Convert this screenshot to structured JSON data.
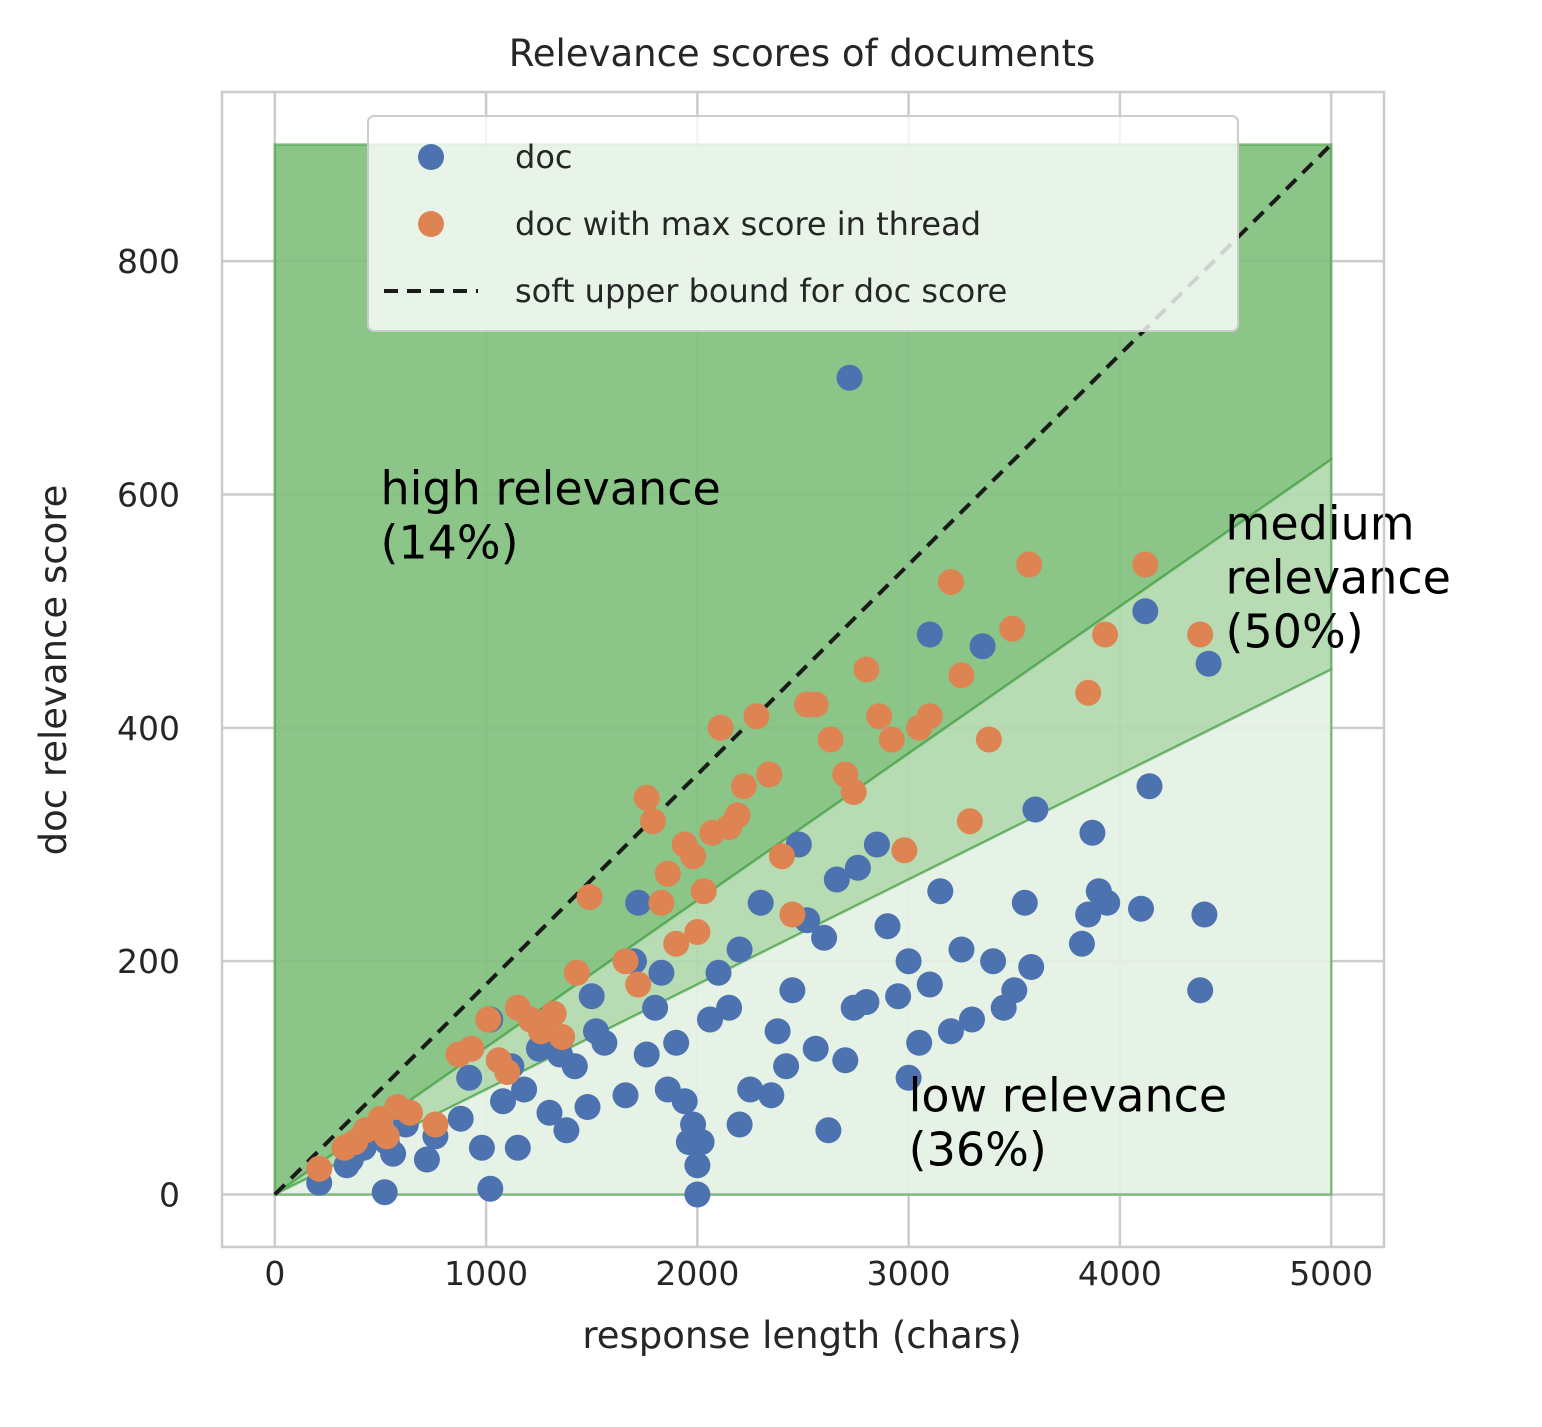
{
  "chart_data": {
    "type": "scatter",
    "title": "Relevance scores of documents",
    "xlabel": "response length (chars)",
    "ylabel": "doc relevance score",
    "xlim": [
      -250,
      5250
    ],
    "ylim": [
      -45,
      945
    ],
    "xticks": [
      0,
      1000,
      2000,
      3000,
      4000,
      5000
    ],
    "yticks": [
      0,
      200,
      400,
      600,
      800
    ],
    "grid": true,
    "legend": {
      "placement": "upper-center",
      "entries": [
        {
          "label": "doc",
          "marker": "circle",
          "color": "#4c72b0"
        },
        {
          "label": "doc with max score in thread",
          "marker": "circle",
          "color": "#dd8452"
        },
        {
          "label": "soft upper bound for doc score",
          "marker": "dashed-line",
          "color": "#1a1a1a"
        }
      ]
    },
    "regions": [
      {
        "label": "high relevance\n(14%)",
        "label_lines": [
          "high relevance",
          "(14%)"
        ],
        "color": "#81c07e",
        "text_anchor": [
          500,
          605
        ],
        "polygon": [
          [
            0,
            0
          ],
          [
            0,
            900
          ],
          [
            5000,
            900
          ],
          [
            5000,
            630
          ]
        ]
      },
      {
        "label": "medium relevance (50%)",
        "label_lines": [
          "medium",
          "relevance",
          "(50%)"
        ],
        "color": "#b1d9ae",
        "text_anchor": [
          4500,
          575
        ],
        "polygon": [
          [
            0,
            0
          ],
          [
            5000,
            630
          ],
          [
            5000,
            450
          ]
        ]
      },
      {
        "label": "low relevance (36%)",
        "label_lines": [
          "low relevance",
          "(36%)"
        ],
        "color": "#e5f1e4",
        "text_anchor": [
          3000,
          85
        ],
        "polygon": [
          [
            0,
            0
          ],
          [
            5000,
            450
          ],
          [
            5000,
            0
          ]
        ]
      }
    ],
    "soft_upper_bound": {
      "name": "soft upper bound for doc score",
      "x": [
        0,
        5000
      ],
      "y": [
        0,
        900
      ]
    },
    "series": [
      {
        "name": "doc",
        "color": "#4c72b0",
        "x": [
          210,
          340,
          360,
          420,
          520,
          530,
          560,
          620,
          720,
          760,
          880,
          920,
          980,
          1020,
          1020,
          1080,
          1120,
          1150,
          1180,
          1250,
          1300,
          1350,
          1380,
          1420,
          1480,
          1500,
          1520,
          1560,
          1660,
          1700,
          1720,
          1760,
          1800,
          1830,
          1860,
          1900,
          1940,
          1960,
          1980,
          2000,
          2000,
          2020,
          2060,
          2100,
          2150,
          2200,
          2200,
          2250,
          2300,
          2350,
          2380,
          2420,
          2450,
          2480,
          2520,
          2560,
          2600,
          2620,
          2660,
          2700,
          2720,
          2740,
          2760,
          2800,
          2850,
          2900,
          2950,
          3000,
          3000,
          3050,
          3100,
          3100,
          3150,
          3200,
          3250,
          3300,
          3350,
          3400,
          3450,
          3500,
          3550,
          3580,
          3600,
          3820,
          3850,
          3870,
          3900,
          3940,
          4100,
          4120,
          4140,
          4380,
          4400,
          4420
        ],
        "y": [
          10,
          25,
          30,
          40,
          2,
          45,
          35,
          60,
          30,
          50,
          65,
          100,
          40,
          5,
          150,
          80,
          110,
          40,
          90,
          125,
          70,
          120,
          55,
          110,
          75,
          170,
          140,
          130,
          85,
          200,
          250,
          120,
          160,
          190,
          90,
          130,
          80,
          45,
          60,
          0,
          25,
          45,
          150,
          190,
          160,
          60,
          210,
          90,
          250,
          85,
          140,
          110,
          175,
          300,
          235,
          125,
          220,
          55,
          270,
          115,
          700,
          160,
          280,
          165,
          300,
          230,
          170,
          200,
          100,
          130,
          180,
          480,
          260,
          140,
          210,
          150,
          470,
          200,
          160,
          175,
          250,
          195,
          330,
          215,
          240,
          310,
          260,
          250,
          245,
          500,
          350,
          175,
          240,
          455
        ]
      },
      {
        "name": "doc with max score in thread",
        "color": "#dd8452",
        "x": [
          210,
          330,
          380,
          430,
          500,
          530,
          580,
          640,
          760,
          870,
          930,
          1010,
          1060,
          1100,
          1150,
          1210,
          1260,
          1320,
          1360,
          1430,
          1490,
          1660,
          1720,
          1760,
          1790,
          1830,
          1860,
          1900,
          1940,
          1980,
          2000,
          2030,
          2070,
          2110,
          2150,
          2190,
          2220,
          2280,
          2340,
          2400,
          2450,
          2520,
          2560,
          2630,
          2700,
          2740,
          2800,
          2860,
          2920,
          2980,
          3050,
          3100,
          3200,
          3250,
          3290,
          3380,
          3490,
          3570,
          3850,
          3930,
          4120,
          4380
        ],
        "y": [
          22,
          40,
          45,
          55,
          65,
          50,
          75,
          70,
          60,
          120,
          125,
          150,
          115,
          105,
          160,
          150,
          140,
          155,
          135,
          190,
          255,
          200,
          180,
          340,
          320,
          250,
          275,
          215,
          300,
          290,
          225,
          260,
          310,
          400,
          315,
          325,
          350,
          410,
          360,
          290,
          240,
          420,
          420,
          390,
          360,
          345,
          450,
          410,
          390,
          295,
          400,
          410,
          525,
          445,
          320,
          390,
          485,
          540,
          430,
          480,
          540,
          480
        ]
      }
    ]
  }
}
